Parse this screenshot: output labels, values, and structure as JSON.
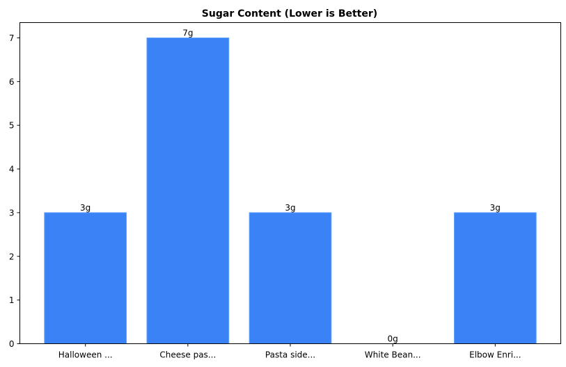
{
  "chart_data": {
    "type": "bar",
    "title": "Sugar Content (Lower is Better)",
    "xlabel": "",
    "ylabel": "",
    "categories": [
      "Halloween ...",
      "Cheese pas...",
      "Pasta side...",
      "White Bean...",
      "Elbow Enri..."
    ],
    "values": [
      3,
      7,
      3,
      0,
      3
    ],
    "data_labels": [
      "3g",
      "7g",
      "3g",
      "0g",
      "3g"
    ],
    "ylim": [
      0,
      7.35
    ],
    "yticks": [
      0,
      1,
      2,
      3,
      4,
      5,
      6,
      7
    ],
    "grid": false,
    "bar_color": "#3b82f6",
    "bar_edge_color": "#60a5fa"
  }
}
